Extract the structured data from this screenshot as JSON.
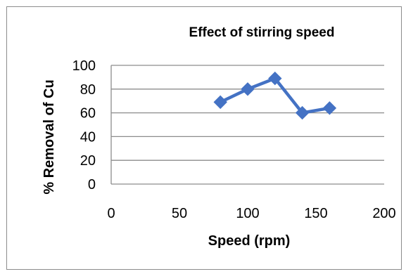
{
  "chart_data": {
    "type": "line",
    "title": "Effect of stirring speed",
    "xlabel": "Speed (rpm)",
    "ylabel": "% Removal of Cu",
    "xlim": [
      0,
      200
    ],
    "ylim": [
      0,
      100
    ],
    "xticks": [
      "0",
      "50",
      "100",
      "150",
      "200"
    ],
    "yticks": [
      "0",
      "20",
      "40",
      "60",
      "80",
      "100"
    ],
    "grid": "horizontal",
    "legend": "none",
    "series": [
      {
        "color": "#4472C4",
        "marker": "diamond",
        "points": [
          {
            "x": 80,
            "y": 69
          },
          {
            "x": 100,
            "y": 80
          },
          {
            "x": 120,
            "y": 89
          },
          {
            "x": 140,
            "y": 60
          },
          {
            "x": 160,
            "y": 64
          }
        ]
      }
    ]
  }
}
